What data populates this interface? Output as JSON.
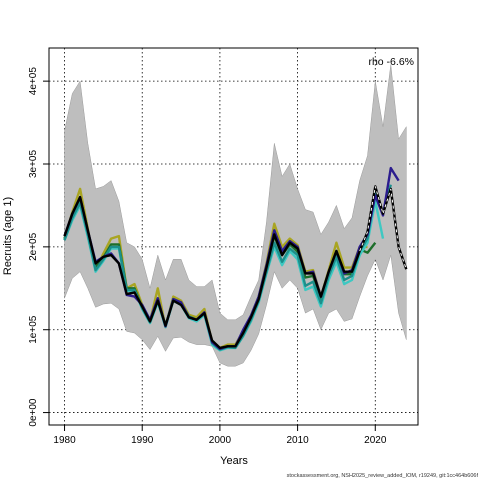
{
  "chart_data": {
    "type": "line",
    "xlabel": "Years",
    "ylabel": "Recruits (age 1)",
    "xlim": [
      1978,
      2025.5
    ],
    "ylim": [
      -15000,
      440000
    ],
    "x_ticks": [
      1980,
      1990,
      2000,
      2010,
      2020
    ],
    "y_ticks": [
      0,
      100000,
      200000,
      300000,
      400000
    ],
    "y_tick_labels": [
      "0e+00",
      "1e+05",
      "2e+05",
      "3e+05",
      "4e+05"
    ],
    "grid": true,
    "annotation": "rho -6.6%",
    "footer": "stockassessment.org, NSH2025_review_added_IOM, r19249, git:1cc464b606f",
    "colors": {
      "band": "#bebebe",
      "main": "#000000",
      "peels": [
        "#2b1c8e",
        "#1c8f8b",
        "#3ec8c2",
        "#1d6e2a",
        "#a9a522"
      ]
    },
    "band": {
      "x": [
        1980,
        1981,
        1982,
        1983,
        1984,
        1985,
        1986,
        1987,
        1988,
        1989,
        1990,
        1991,
        1992,
        1993,
        1994,
        1995,
        1996,
        1997,
        1998,
        1999,
        2000,
        2001,
        2002,
        2003,
        2004,
        2005,
        2006,
        2007,
        2008,
        2009,
        2010,
        2011,
        2012,
        2013,
        2014,
        2015,
        2016,
        2017,
        2018,
        2019,
        2020,
        2021,
        2022,
        2023,
        2024
      ],
      "upper": [
        340000,
        385000,
        400000,
        325000,
        270000,
        273000,
        280000,
        255000,
        205000,
        200000,
        185000,
        150000,
        190000,
        160000,
        185000,
        185000,
        160000,
        152000,
        152000,
        160000,
        120000,
        112000,
        112000,
        118000,
        140000,
        160000,
        230000,
        325000,
        285000,
        300000,
        270000,
        245000,
        242000,
        215000,
        230000,
        250000,
        222000,
        235000,
        280000,
        310000,
        400000,
        345000,
        420000,
        330000,
        345000
      ],
      "lower": [
        138000,
        162000,
        170000,
        150000,
        127000,
        131000,
        132000,
        125000,
        98000,
        96000,
        88000,
        76000,
        92000,
        74000,
        90000,
        91000,
        85000,
        82000,
        82000,
        80000,
        60000,
        56000,
        56000,
        60000,
        75000,
        95000,
        130000,
        170000,
        150000,
        160000,
        150000,
        120000,
        125000,
        100000,
        120000,
        125000,
        110000,
        113000,
        140000,
        165000,
        185000,
        160000,
        190000,
        120000,
        88000
      ]
    },
    "series": [
      {
        "x": [
          1980,
          1981,
          1982,
          1983,
          1984,
          1985,
          1986,
          1987,
          1988,
          1989,
          1990,
          1991,
          1992,
          1993,
          1994,
          1995,
          1996,
          1997,
          1998,
          1999,
          2000,
          2001,
          2002,
          2003,
          2004,
          2005,
          2006,
          2007,
          2008,
          2009,
          2010,
          2011,
          2012,
          2013,
          2014,
          2015,
          2016,
          2017,
          2018,
          2019,
          2020,
          2021,
          2022,
          2023,
          2024
        ],
        "values": [
          213000,
          240000,
          260000,
          220000,
          180000,
          188000,
          190000,
          180000,
          143000,
          145000,
          128000,
          110000,
          135000,
          105000,
          135000,
          130000,
          115000,
          112000,
          120000,
          87000,
          78000,
          80000,
          80000,
          96000,
          115000,
          137000,
          175000,
          215000,
          190000,
          205000,
          198000,
          168000,
          168000,
          140000,
          170000,
          195000,
          170000,
          170000,
          195000,
          218000,
          273000,
          240000,
          270000,
          200000,
          173000
        ]
      },
      {
        "x": [
          1980,
          1981,
          1982,
          1983,
          1984,
          1985,
          1986,
          1987,
          1988,
          1989,
          1990,
          1991,
          1992,
          1993,
          1994,
          1995,
          1996,
          1997,
          1998,
          1999,
          2000,
          2001,
          2002,
          2003,
          2004,
          2005,
          2006,
          2007,
          2008,
          2009,
          2010,
          2011,
          2012,
          2013,
          2014,
          2015,
          2016,
          2017,
          2018,
          2019,
          2020,
          2021,
          2022,
          2023
        ],
        "values": [
          213000,
          240000,
          260000,
          220000,
          182000,
          188000,
          192000,
          180000,
          142000,
          140000,
          130000,
          112000,
          138000,
          104000,
          137000,
          133000,
          115000,
          112000,
          121000,
          85000,
          77000,
          80000,
          80000,
          100000,
          117000,
          140000,
          178000,
          220000,
          195000,
          207000,
          200000,
          168000,
          170000,
          140000,
          170000,
          195000,
          168000,
          172000,
          200000,
          215000,
          262000,
          238000,
          295000,
          280000
        ]
      },
      {
        "x": [
          1980,
          1981,
          1982,
          1983,
          1984,
          1985,
          1986,
          1987,
          1988,
          1989,
          1990,
          1991,
          1992,
          1993,
          1994,
          1995,
          1996,
          1997,
          1998,
          1999,
          2000,
          2001,
          2002,
          2003,
          2004,
          2005,
          2006,
          2007,
          2008,
          2009,
          2010,
          2011,
          2012,
          2013,
          2014,
          2015,
          2016,
          2017,
          2018,
          2019,
          2020,
          2021,
          2022
        ],
        "values": [
          208000,
          235000,
          253000,
          215000,
          172000,
          185000,
          200000,
          200000,
          148000,
          148000,
          126000,
          109000,
          135000,
          104000,
          137000,
          132000,
          116000,
          112000,
          119000,
          84000,
          76000,
          79000,
          78000,
          93000,
          112000,
          135000,
          170000,
          205000,
          182000,
          198000,
          190000,
          153000,
          158000,
          132000,
          165000,
          188000,
          160000,
          165000,
          195000,
          210000,
          268000,
          240000,
          275000
        ]
      },
      {
        "x": [
          1980,
          1981,
          1982,
          1983,
          1984,
          1985,
          1986,
          1987,
          1988,
          1989,
          1990,
          1991,
          1992,
          1993,
          1994,
          1995,
          1996,
          1997,
          1998,
          1999,
          2000,
          2001,
          2002,
          2003,
          2004,
          2005,
          2006,
          2007,
          2008,
          2009,
          2010,
          2011,
          2012,
          2013,
          2014,
          2015,
          2016,
          2017,
          2018,
          2019,
          2020,
          2021
        ],
        "values": [
          208000,
          232000,
          250000,
          212000,
          170000,
          183000,
          198000,
          198000,
          147000,
          147000,
          125000,
          108000,
          133000,
          103000,
          135000,
          130000,
          114000,
          110000,
          118000,
          82000,
          75000,
          78000,
          78000,
          92000,
          110000,
          133000,
          168000,
          200000,
          178000,
          195000,
          185000,
          148000,
          152000,
          128000,
          160000,
          182000,
          155000,
          160000,
          190000,
          205000,
          255000,
          210000
        ]
      },
      {
        "x": [
          1980,
          1981,
          1982,
          1983,
          1984,
          1985,
          1986,
          1987,
          1988,
          1989,
          1990,
          1991,
          1992,
          1993,
          1994,
          1995,
          1996,
          1997,
          1998,
          1999,
          2000,
          2001,
          2002,
          2003,
          2004,
          2005,
          2006,
          2007,
          2008,
          2009,
          2010,
          2011,
          2012,
          2013,
          2014,
          2015,
          2016,
          2017,
          2018,
          2019,
          2020
        ],
        "values": [
          210000,
          238000,
          257000,
          218000,
          176000,
          187000,
          203000,
          203000,
          150000,
          150000,
          127000,
          110000,
          137000,
          105000,
          137000,
          132000,
          116000,
          112000,
          120000,
          85000,
          77000,
          80000,
          80000,
          96000,
          114000,
          137000,
          175000,
          213000,
          190000,
          203000,
          194000,
          163000,
          165000,
          137000,
          167000,
          190000,
          167000,
          167000,
          197000,
          193000,
          205000
        ]
      },
      {
        "x": [
          1980,
          1981,
          1982,
          1983,
          1984,
          1985,
          1986,
          1987,
          1988,
          1989,
          1990,
          1991,
          1992,
          1993,
          1994,
          1995,
          1996,
          1997,
          1998,
          1999,
          2000,
          2001,
          2002,
          2003,
          2004,
          2005,
          2006,
          2007,
          2008,
          2009,
          2010,
          2011,
          2012,
          2013,
          2014,
          2015,
          2016,
          2017,
          2018,
          2019
        ],
        "values": [
          210000,
          242000,
          270000,
          222000,
          172000,
          192000,
          210000,
          213000,
          150000,
          155000,
          130000,
          110000,
          150000,
          103000,
          140000,
          135000,
          118000,
          115000,
          125000,
          85000,
          78000,
          82000,
          82000,
          98000,
          117000,
          140000,
          180000,
          228000,
          200000,
          210000,
          202000,
          170000,
          172000,
          140000,
          172000,
          205000,
          175000,
          175000,
          200000,
          200000
        ]
      }
    ]
  }
}
